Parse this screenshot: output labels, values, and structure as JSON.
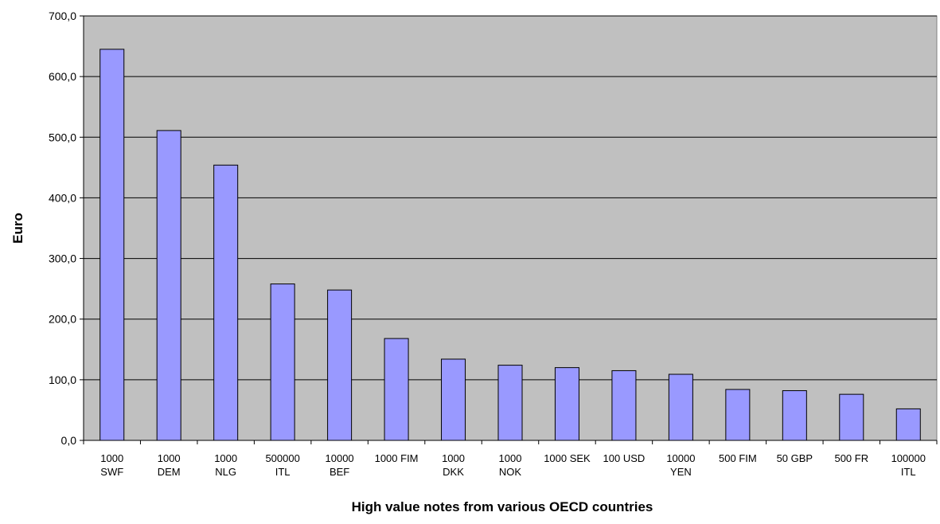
{
  "chart_data": {
    "type": "bar",
    "title": "",
    "xlabel": "High value notes from various OECD countries",
    "ylabel": "Euro",
    "ylim": [
      0,
      700
    ],
    "yticks": [
      0,
      100,
      200,
      300,
      400,
      500,
      600,
      700
    ],
    "ytick_labels": [
      "0,0",
      "100,0",
      "200,0",
      "300,0",
      "400,0",
      "500,0",
      "600,0",
      "700,0"
    ],
    "grid": true,
    "legend": "none",
    "categories": [
      [
        "1000",
        "SWF"
      ],
      [
        "1000",
        "DEM"
      ],
      [
        "1000",
        "NLG"
      ],
      [
        "500000",
        "ITL"
      ],
      [
        "10000",
        "BEF"
      ],
      [
        "1000 FIM"
      ],
      [
        "1000",
        "DKK"
      ],
      [
        "1000",
        "NOK"
      ],
      [
        "1000 SEK"
      ],
      [
        "100 USD"
      ],
      [
        "10000",
        "YEN"
      ],
      [
        "500 FIM"
      ],
      [
        "50 GBP"
      ],
      [
        "500 FR"
      ],
      [
        "100000",
        "ITL"
      ]
    ],
    "values": [
      645,
      511,
      454,
      258,
      248,
      168,
      134,
      124,
      120,
      115,
      109,
      84,
      82,
      76,
      52
    ],
    "colors": {
      "plot_background": "#c0c0c0",
      "bar_fill": "#9999ff",
      "bar_stroke": "#000000",
      "grid": "#000000"
    }
  }
}
